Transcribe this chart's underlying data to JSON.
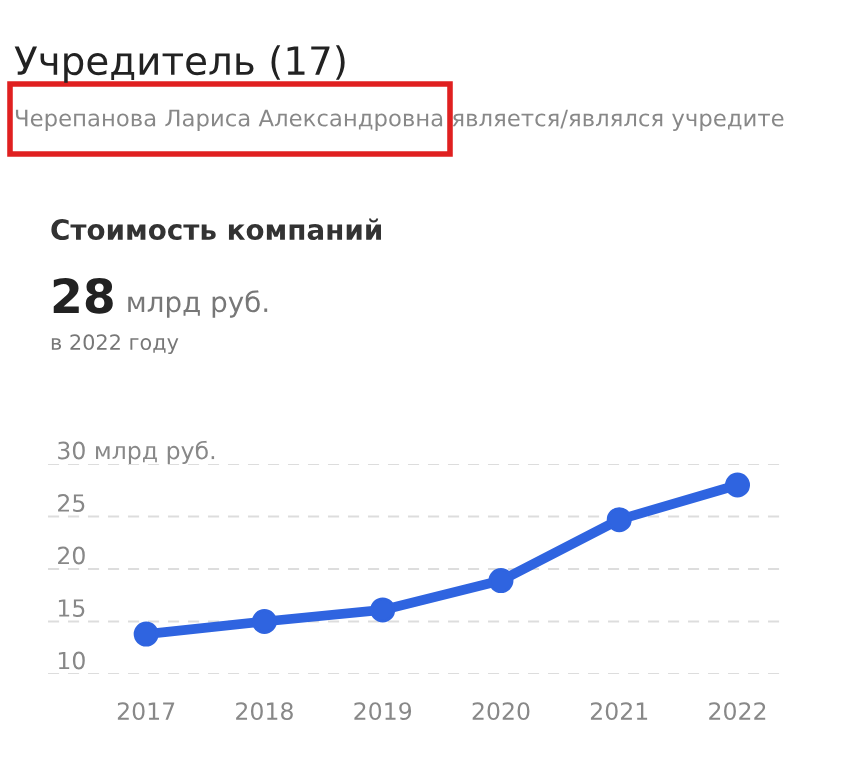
{
  "chart_data": {
    "type": "line",
    "title": "Стоимость компаний",
    "subtitle": "28 млрд руб.",
    "annotations": [
      "Учредитель (17)",
      "Черепанова Лариса Александровна является/являлся учредите",
      "в 2022 году"
    ],
    "categories": [
      "2017",
      "2018",
      "2019",
      "2020",
      "2021",
      "2022"
    ],
    "series": [
      {
        "color": "#2f64e0",
        "values": [
          13.8,
          15.0,
          16.1,
          18.9,
          24.7,
          28
        ]
      }
    ],
    "ylim": [
      10,
      30
    ],
    "yticks": [
      10,
      15,
      20,
      25,
      {
        "value": 30,
        "label": "30 млрд руб."
      }
    ],
    "grid": "y",
    "marker": "circle",
    "line_style": "solid"
  }
}
